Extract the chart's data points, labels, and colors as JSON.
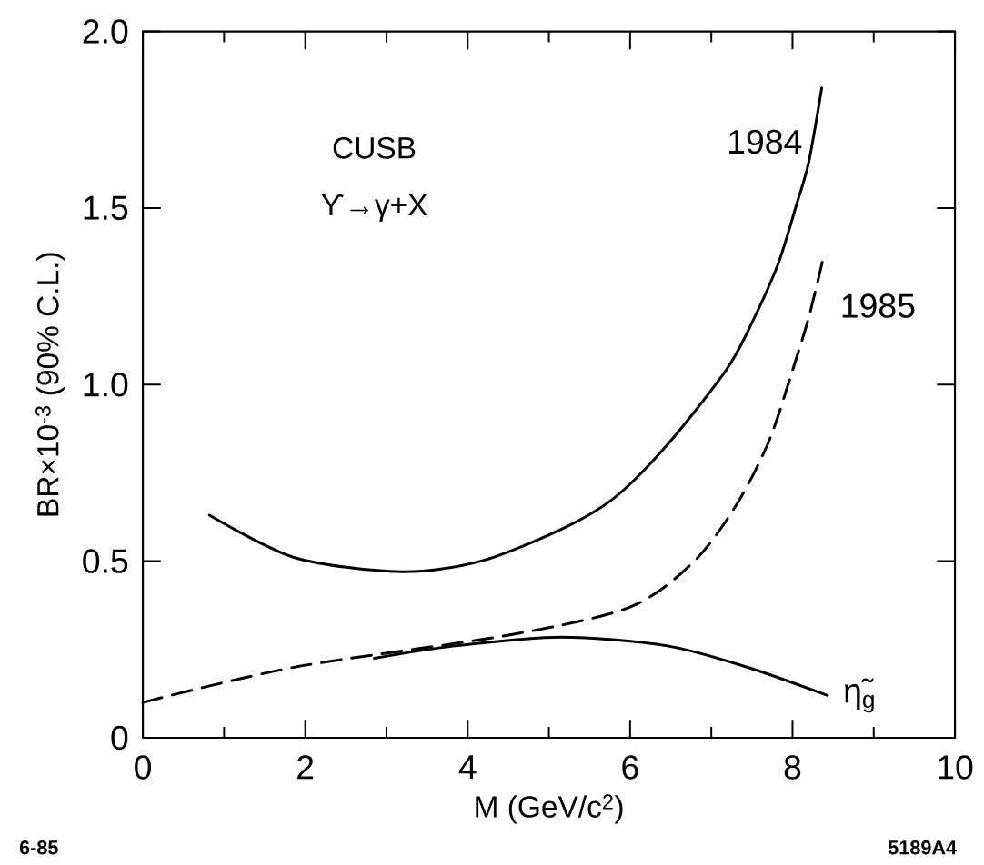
{
  "chart_data": {
    "type": "line",
    "xlabel": "M   (GeV/c$^{2}$)",
    "ylabel": "BR×10$^{-3}$   (90% C.L.)",
    "xlim": [
      0,
      10
    ],
    "ylim": [
      0,
      2
    ],
    "xticks": [
      0,
      {
        "value": 1,
        "label": null
      },
      2,
      {
        "value": 3,
        "label": null
      },
      4,
      {
        "value": 5,
        "label": null
      },
      6,
      {
        "value": 7,
        "label": null
      },
      8,
      {
        "value": 9,
        "label": null
      },
      10
    ],
    "yticks": [
      0,
      0.5,
      {
        "value": 1,
        "label": "1.0"
      },
      1.5,
      {
        "value": 2,
        "label": "2.0"
      }
    ],
    "marker": "none",
    "series": [
      {
        "name": "1984",
        "color": "#000000",
        "line_style": "solid",
        "x": [
          0.82,
          1.87,
          3.18,
          4.16,
          5.15,
          5.81,
          6.46,
          7.18,
          7.49,
          7.82,
          8.05,
          8.2,
          8.36
        ],
        "values": [
          0.63,
          0.51,
          0.47,
          0.5,
          0.59,
          0.68,
          0.83,
          1.04,
          1.17,
          1.34,
          1.51,
          1.63,
          1.84
        ]
      },
      {
        "name": "1985",
        "color": "#000000",
        "line_style": "dashed",
        "x": [
          0,
          1.87,
          4.49,
          6.0,
          6.79,
          7.31,
          7.71,
          8.0,
          8.2,
          8.37
        ],
        "values": [
          0.1,
          0.2,
          0.29,
          0.37,
          0.5,
          0.66,
          0.84,
          1.04,
          1.19,
          1.35
        ]
      },
      {
        "name": "η̃$_{g}$",
        "color": "#000000",
        "line_style": "solid",
        "x": [
          2.85,
          3.84,
          5.15,
          6.46,
          7.44,
          8.43
        ],
        "values": [
          0.225,
          0.26,
          0.285,
          0.26,
          0.2,
          0.12
        ]
      }
    ],
    "annotations": [
      "CUSB",
      "ϒ→γ+X",
      "6-85",
      "5189A4"
    ]
  }
}
